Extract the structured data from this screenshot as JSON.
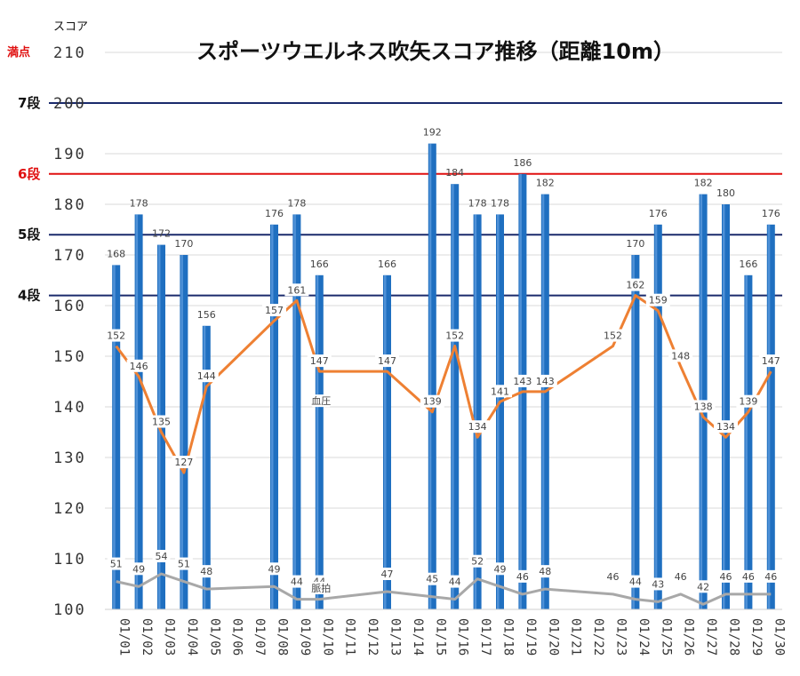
{
  "chart_data": {
    "type": "bar",
    "title": "スポーツウエルネス吹矢スコア推移（距離10m）",
    "ylabel": "スコア",
    "ylim": [
      100,
      210
    ],
    "yticks": [
      100,
      110,
      120,
      130,
      140,
      150,
      160,
      170,
      180,
      190,
      200,
      210
    ],
    "full_score_label": "満点",
    "categories": [
      "01/01",
      "01/02",
      "01/03",
      "01/04",
      "01/05",
      "01/06",
      "01/07",
      "01/08",
      "01/09",
      "01/10",
      "01/11",
      "01/12",
      "01/13",
      "01/14",
      "01/15",
      "01/16",
      "01/17",
      "01/18",
      "01/19",
      "01/20",
      "01/21",
      "01/22",
      "01/23",
      "01/24",
      "01/25",
      "01/26",
      "01/27",
      "01/28",
      "01/29",
      "01/30"
    ],
    "scores": [
      168,
      178,
      172,
      170,
      156,
      null,
      null,
      176,
      178,
      166,
      null,
      null,
      166,
      null,
      192,
      184,
      178,
      178,
      186,
      182,
      null,
      null,
      null,
      170,
      176,
      null,
      182,
      180,
      166,
      176
    ],
    "series": [
      {
        "name": "血圧",
        "values": [
          152,
          146,
          135,
          127,
          144,
          null,
          null,
          157,
          161,
          147,
          null,
          null,
          147,
          null,
          139,
          152,
          134,
          141,
          143,
          143,
          null,
          null,
          152,
          162,
          159,
          148,
          138,
          134,
          139,
          147
        ]
      },
      {
        "name": "脈拍",
        "values": [
          51,
          49,
          54,
          51,
          48,
          null,
          null,
          49,
          44,
          44,
          null,
          null,
          47,
          null,
          45,
          44,
          52,
          49,
          46,
          48,
          null,
          null,
          46,
          44,
          43,
          46,
          42,
          46,
          46,
          46
        ]
      }
    ],
    "reference_lines": [
      {
        "label": "7段",
        "value": 200,
        "color": "#1a2a6c"
      },
      {
        "label": "6段",
        "value": 186,
        "color": "#e01010"
      },
      {
        "label": "5段",
        "value": 174,
        "color": "#1a2a6c"
      },
      {
        "label": "4段",
        "value": 162,
        "color": "#1a2a6c"
      }
    ],
    "colors": {
      "bar": "#1f6fc0",
      "bp_line": "#ee8033",
      "pulse_line": "#a8a8a8",
      "grid": "#d8d8d8"
    },
    "grid": true
  }
}
